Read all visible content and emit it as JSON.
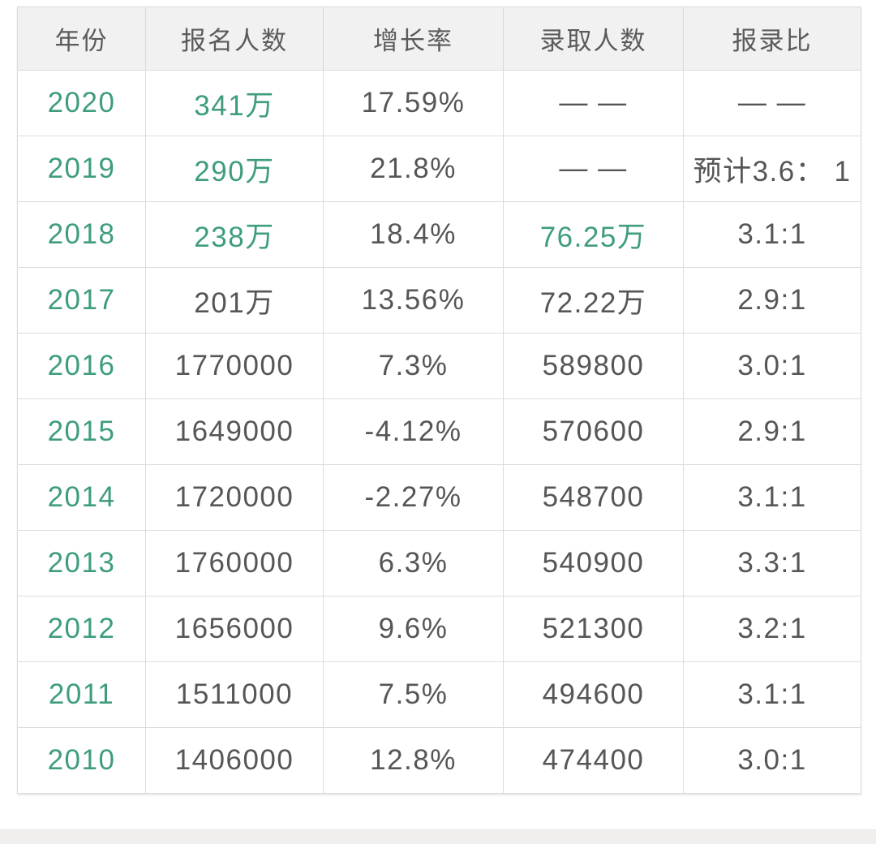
{
  "chart_data": {
    "type": "table",
    "columns": [
      "年份",
      "报名人数",
      "增长率",
      "录取人数",
      "报录比"
    ],
    "column_keys": [
      "year",
      "applicants",
      "growth-rate",
      "admitted",
      "ratio"
    ],
    "rows": [
      {
        "cells": [
          "2020",
          "341万",
          "17.59%",
          "— —",
          "— —"
        ],
        "green": [
          true,
          true,
          false,
          false,
          false
        ]
      },
      {
        "cells": [
          "2019",
          "290万",
          "21.8%",
          "— —",
          "预计3.6： 1"
        ],
        "green": [
          true,
          true,
          false,
          false,
          false
        ]
      },
      {
        "cells": [
          "2018",
          "238万",
          "18.4%",
          "76.25万",
          "3.1:1"
        ],
        "green": [
          true,
          true,
          false,
          true,
          false
        ]
      },
      {
        "cells": [
          "2017",
          "201万",
          "13.56%",
          "72.22万",
          "2.9:1"
        ],
        "green": [
          true,
          false,
          false,
          false,
          false
        ]
      },
      {
        "cells": [
          "2016",
          "1770000",
          "7.3%",
          "589800",
          "3.0:1"
        ],
        "green": [
          true,
          false,
          false,
          false,
          false
        ]
      },
      {
        "cells": [
          "2015",
          "1649000",
          "-4.12%",
          "570600",
          "2.9:1"
        ],
        "green": [
          true,
          false,
          false,
          false,
          false
        ]
      },
      {
        "cells": [
          "2014",
          "1720000",
          "-2.27%",
          "548700",
          "3.1:1"
        ],
        "green": [
          true,
          false,
          false,
          false,
          false
        ]
      },
      {
        "cells": [
          "2013",
          "1760000",
          "6.3%",
          "540900",
          "3.3:1"
        ],
        "green": [
          true,
          false,
          false,
          false,
          false
        ]
      },
      {
        "cells": [
          "2012",
          "1656000",
          "9.6%",
          "521300",
          "3.2:1"
        ],
        "green": [
          true,
          false,
          false,
          false,
          false
        ]
      },
      {
        "cells": [
          "2011",
          "1511000",
          "7.5%",
          "494600",
          "3.1:1"
        ],
        "green": [
          true,
          false,
          false,
          false,
          false
        ]
      },
      {
        "cells": [
          "2010",
          "1406000",
          "12.8%",
          "474400",
          "3.0:1"
        ],
        "green": [
          true,
          false,
          false,
          false,
          false
        ]
      }
    ]
  },
  "colors": {
    "accent_green": "#3f9d7d",
    "body_text": "#565656",
    "header_text": "#5b5b5b",
    "header_background": "#f1f1f1",
    "cell_border": "#dcdcdc",
    "footer_strip": "#f0efee"
  }
}
